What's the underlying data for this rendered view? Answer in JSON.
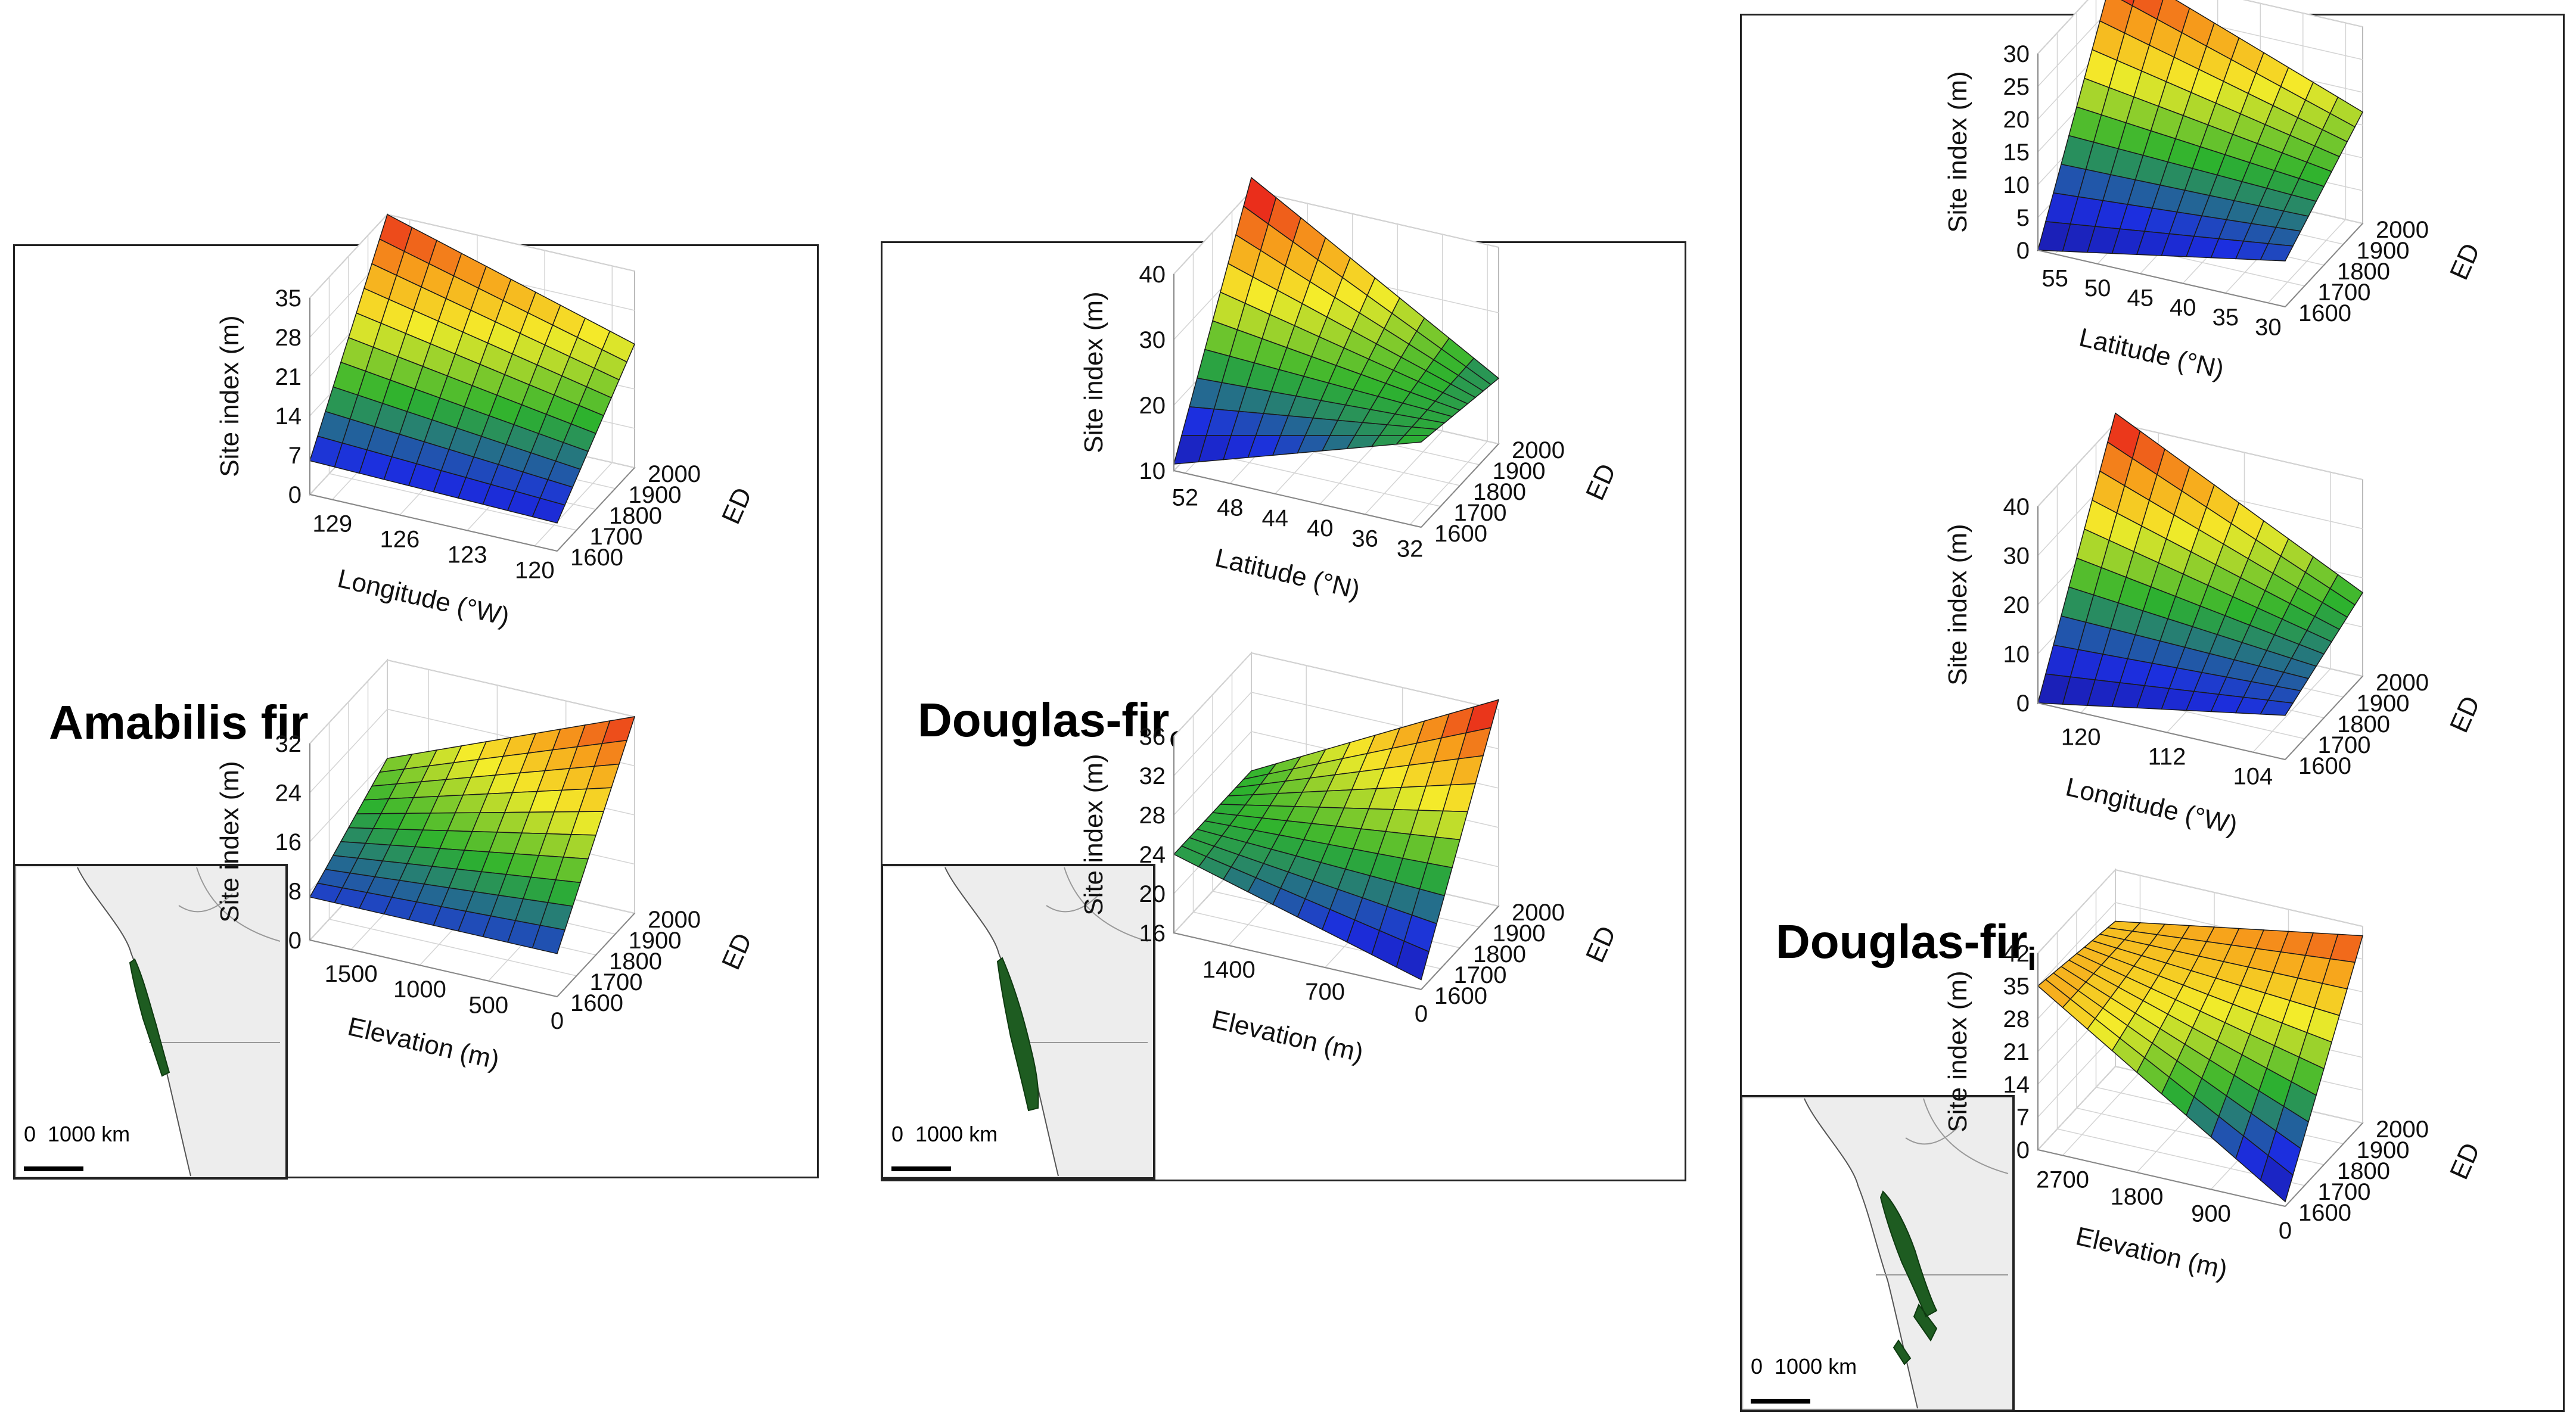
{
  "colors": {
    "high": "#e8211b",
    "orange": "#f7a21b",
    "yellow": "#f4ec2a",
    "green": "#2db22e",
    "blue": "#1c2fdf",
    "low": "#1a1aa6",
    "range": "#1e5c21"
  },
  "panels": [
    {
      "species_main": "Amabilis fir",
      "species_sub": "",
      "scale_label": "0  1000 km"
    },
    {
      "species_main": "Douglas-fir",
      "species_sub": "c",
      "scale_label": "0  1000 km"
    },
    {
      "species_main": "Douglas-fir",
      "species_sub": "i",
      "scale_label": "0  1000 km"
    }
  ],
  "chart_data": [
    {
      "type": "surface3d",
      "panel": "Amabilis fir",
      "xlabel": "Longitude (°W)",
      "ylabel": "ED",
      "zlabel": "Site index (m)",
      "x_ticks": [
        "129",
        "126",
        "123",
        "120"
      ],
      "y_ticks": [
        "1600",
        "1700",
        "1800",
        "1900",
        "2000"
      ],
      "z_ticks": [
        "0",
        "7",
        "14",
        "21",
        "28",
        "35"
      ],
      "x_range": [
        130,
        119
      ],
      "y_range": [
        1600,
        2000
      ],
      "z_range": [
        0,
        35
      ],
      "corners": {
        "x0y0": 6,
        "x1y0": 5,
        "x0y1": 35,
        "x1y1": 22
      }
    },
    {
      "type": "surface3d",
      "panel": "Amabilis fir",
      "xlabel": "Elevation (m)",
      "ylabel": "ED",
      "zlabel": "Site index (m)",
      "x_ticks": [
        "1500",
        "1000",
        "500",
        "0"
      ],
      "y_ticks": [
        "1600",
        "1700",
        "1800",
        "1900",
        "2000"
      ],
      "z_ticks": [
        "0",
        "8",
        "16",
        "24",
        "32"
      ],
      "x_range": [
        1800,
        0
      ],
      "y_range": [
        1600,
        2000
      ],
      "z_range": [
        0,
        32
      ],
      "corners": {
        "x0y0": 7,
        "x1y0": 7,
        "x0y1": 16,
        "x1y1": 32
      }
    },
    {
      "type": "surface3d",
      "panel": "Douglas-firc",
      "xlabel": "Latitude (°N)",
      "ylabel": "ED",
      "zlabel": "Site index (m)",
      "x_ticks": [
        "52",
        "48",
        "44",
        "40",
        "36",
        "32"
      ],
      "y_ticks": [
        "1600",
        "1700",
        "1800",
        "1900",
        "2000"
      ],
      "z_ticks": [
        "10",
        "20",
        "30",
        "40"
      ],
      "x_range": [
        53,
        31
      ],
      "y_range": [
        1600,
        2000
      ],
      "z_range": [
        10,
        40
      ],
      "corners": {
        "x0y0": 11,
        "x1y0": 23,
        "x0y1": 42,
        "x1y1": 20
      }
    },
    {
      "type": "surface3d",
      "panel": "Douglas-firc",
      "xlabel": "Elevation (m)",
      "ylabel": "ED",
      "zlabel": "Site index (m)",
      "x_ticks": [
        "1400",
        "700",
        "0"
      ],
      "y_ticks": [
        "1600",
        "1700",
        "1800",
        "1900",
        "2000"
      ],
      "z_ticks": [
        "16",
        "20",
        "24",
        "28",
        "32",
        "36"
      ],
      "x_range": [
        1800,
        0
      ],
      "y_range": [
        1600,
        2000
      ],
      "z_range": [
        16,
        36
      ],
      "corners": {
        "x0y0": 24,
        "x1y0": 17,
        "x0y1": 24,
        "x1y1": 37
      }
    },
    {
      "type": "surface3d",
      "panel": "Douglas-firi",
      "xlabel": "Latitude (°N)",
      "ylabel": "ED",
      "zlabel": "Site index (m)",
      "x_ticks": [
        "55",
        "50",
        "45",
        "40",
        "35",
        "30"
      ],
      "y_ticks": [
        "1600",
        "1700",
        "1800",
        "1900",
        "2000"
      ],
      "z_ticks": [
        "0",
        "5",
        "10",
        "15",
        "20",
        "25",
        "30"
      ],
      "x_range": [
        57,
        28
      ],
      "y_range": [
        1600,
        2000
      ],
      "z_range": [
        0,
        30
      ],
      "corners": {
        "x0y0": 0,
        "x1y0": 7,
        "x0y1": 31,
        "x1y1": 17
      }
    },
    {
      "type": "surface3d",
      "panel": "Douglas-firi",
      "xlabel": "Longitude (°W)",
      "ylabel": "ED",
      "zlabel": "Site index (m)",
      "x_ticks": [
        "120",
        "112",
        "104"
      ],
      "y_ticks": [
        "1600",
        "1700",
        "1800",
        "1900",
        "2000"
      ],
      "z_ticks": [
        "0",
        "10",
        "20",
        "30",
        "40"
      ],
      "x_range": [
        124,
        101
      ],
      "y_range": [
        1600,
        2000
      ],
      "z_range": [
        0,
        40
      ],
      "corners": {
        "x0y0": 0,
        "x1y0": 9,
        "x0y1": 42,
        "x1y1": 17
      }
    },
    {
      "type": "surface3d",
      "panel": "Douglas-firi",
      "xlabel": "Elevation (m)",
      "ylabel": "ED",
      "zlabel": "Site index (m)",
      "x_ticks": [
        "2700",
        "1800",
        "900",
        "0"
      ],
      "y_ticks": [
        "1600",
        "1700",
        "1800",
        "1900",
        "2000"
      ],
      "z_ticks": [
        "0",
        "7",
        "14",
        "21",
        "28",
        "35",
        "42"
      ],
      "x_range": [
        3000,
        0
      ],
      "y_range": [
        1600,
        2000
      ],
      "z_range": [
        0,
        42
      ],
      "corners": {
        "x0y0": 35,
        "x1y0": 1,
        "x0y1": 31,
        "x1y1": 40
      }
    }
  ]
}
